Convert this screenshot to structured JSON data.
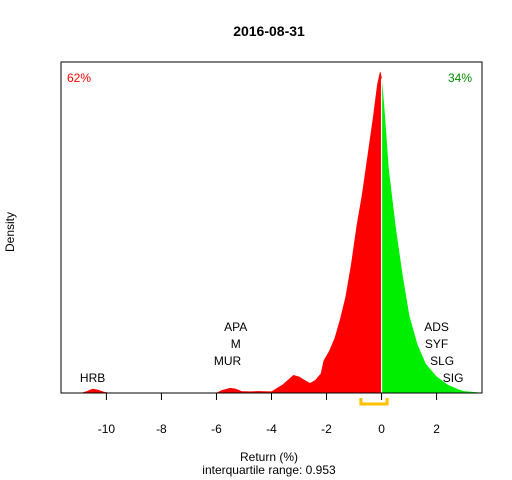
{
  "chart_data": {
    "type": "area",
    "title": "2016-08-31",
    "xlabel": "Return (%)",
    "ylabel": "Density",
    "subtitle": "interquartile range: 0.953",
    "xlim": [
      -11.65,
      3.65
    ],
    "ylim": [
      0,
      1
    ],
    "x_ticks": [
      -10,
      -8,
      -6,
      -4,
      -2,
      0,
      2
    ],
    "x_tick_labels": [
      "-10",
      "-8",
      "-6",
      "-4",
      "-2",
      "0",
      "2"
    ],
    "split_at": 0,
    "negative_share": "62%",
    "positive_share": "34%",
    "colors": {
      "negative": "#ff0000",
      "positive": "#00ee00",
      "split_line": "#ffffff",
      "iqr_bracket": "#ffc000",
      "baseline": "#bebebe"
    },
    "iqr": [
      -0.75,
      0.2
    ],
    "density": {
      "x": [
        -11.65,
        -10.9,
        -10.7,
        -10.5,
        -10.3,
        -10.1,
        -9.9,
        -6.0,
        -5.8,
        -5.5,
        -5.3,
        -5.1,
        -4.8,
        -4.5,
        -4.0,
        -3.6,
        -3.4,
        -3.2,
        -3.0,
        -2.8,
        -2.6,
        -2.4,
        -2.2,
        -2.1,
        -1.9,
        -1.7,
        -1.5,
        -1.3,
        -1.1,
        -0.9,
        -0.7,
        -0.5,
        -0.3,
        -0.15,
        -0.05,
        0.0,
        0.1,
        0.25,
        0.5,
        0.75,
        1.0,
        1.3,
        1.6,
        2.0,
        2.4,
        2.8,
        3.0,
        3.65
      ],
      "y": [
        0.0,
        0.0,
        0.005,
        0.012,
        0.009,
        0.003,
        0.0,
        0.0,
        0.008,
        0.015,
        0.012,
        0.005,
        0.004,
        0.005,
        0.004,
        0.025,
        0.04,
        0.055,
        0.05,
        0.04,
        0.03,
        0.04,
        0.06,
        0.1,
        0.13,
        0.17,
        0.23,
        0.3,
        0.4,
        0.52,
        0.62,
        0.74,
        0.86,
        0.96,
        1.0,
        0.98,
        0.88,
        0.7,
        0.52,
        0.37,
        0.24,
        0.15,
        0.09,
        0.05,
        0.025,
        0.01,
        0.005,
        0.0
      ]
    },
    "tickers": [
      {
        "label": "HRB",
        "x": -10.5,
        "row": 4
      },
      {
        "label": "APA",
        "x": -5.3,
        "row": 1
      },
      {
        "label": "M",
        "x": -5.3,
        "row": 2
      },
      {
        "label": "MUR",
        "x": -5.6,
        "row": 3
      },
      {
        "label": "ADS",
        "x": 2.0,
        "row": 1
      },
      {
        "label": "SYF",
        "x": 2.0,
        "row": 2
      },
      {
        "label": "SLG",
        "x": 2.2,
        "row": 3
      },
      {
        "label": "SIG",
        "x": 2.6,
        "row": 4
      }
    ]
  }
}
